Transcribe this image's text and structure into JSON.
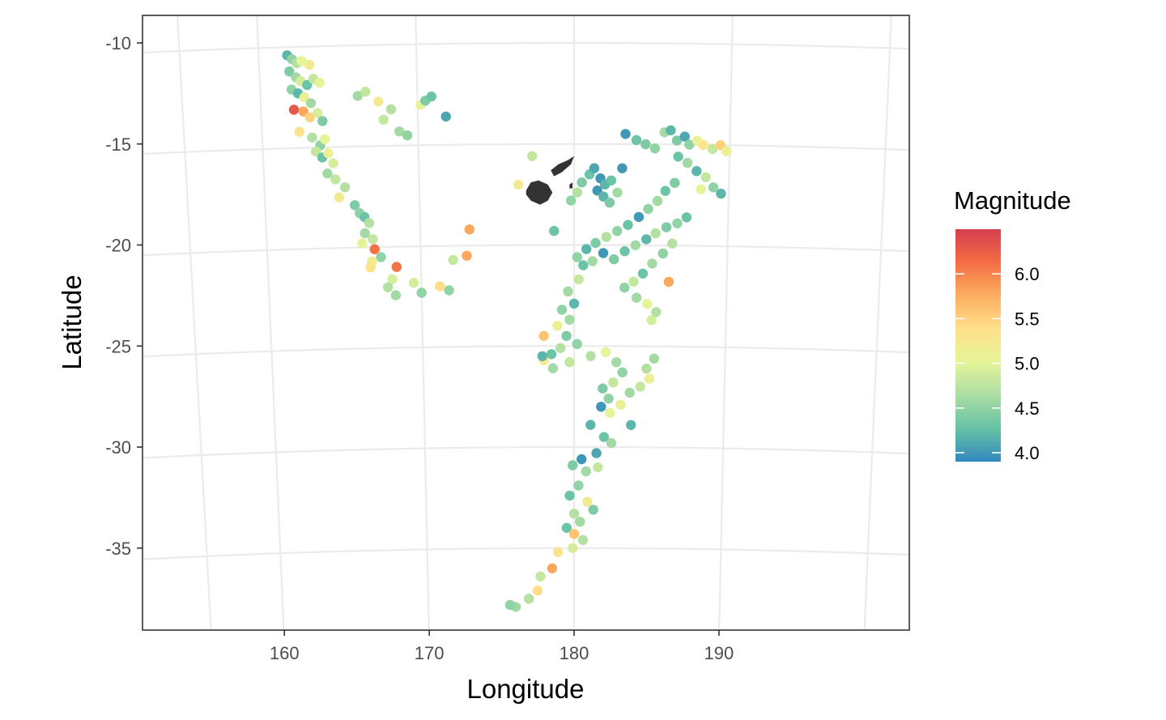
{
  "chart_data": {
    "type": "scatter",
    "title": "",
    "xlabel": "Longitude",
    "ylabel": "Latitude",
    "xlim": [
      152.5,
      201.5
    ],
    "ylim": [
      -39.5,
      -8.7
    ],
    "x_ticks": [
      160,
      170,
      180,
      190
    ],
    "x_tick_labels": [
      "160",
      "170",
      "180",
      "190"
    ],
    "y_ticks": [
      -10,
      -15,
      -20,
      -25,
      -30,
      -35
    ],
    "y_tick_labels": [
      "-10",
      "-15",
      "-20",
      "-25",
      "-30",
      "-35"
    ],
    "grid": true,
    "graticule_lon": [
      155,
      160,
      170,
      180,
      190,
      200
    ],
    "graticule_lat": [
      -10,
      -15,
      -20,
      -25,
      -30,
      -35
    ],
    "legend": {
      "title": "Magnitude",
      "placement": "right",
      "min": 3.9,
      "max": 6.5,
      "breaks": [
        4.0,
        4.5,
        5.0,
        5.5,
        6.0
      ],
      "break_labels": [
        "4.0",
        "4.5",
        "5.0",
        "5.5",
        "6.0"
      ],
      "palette": [
        "#3288bd",
        "#66c2a5",
        "#abdda4",
        "#e6f598",
        "#fee08b",
        "#fdae61",
        "#f46d43",
        "#d53e4f"
      ]
    },
    "land_color": "#333333",
    "series": [
      {
        "points": [
          [
            161.8,
            -10.4,
            4.2
          ],
          [
            162.1,
            -10.6,
            4.5
          ],
          [
            162.4,
            -10.8,
            4.7
          ],
          [
            162.7,
            -10.7,
            5.0
          ],
          [
            163.2,
            -10.9,
            5.2
          ],
          [
            161.9,
            -11.2,
            4.4
          ],
          [
            162.3,
            -11.5,
            4.6
          ],
          [
            162.6,
            -11.7,
            4.9
          ],
          [
            163.0,
            -11.9,
            4.3
          ],
          [
            163.4,
            -11.6,
            4.8
          ],
          [
            163.8,
            -11.8,
            5.0
          ],
          [
            162.0,
            -12.1,
            4.5
          ],
          [
            162.4,
            -12.3,
            4.2
          ],
          [
            162.8,
            -12.5,
            5.1
          ],
          [
            163.2,
            -12.8,
            4.6
          ],
          [
            162.1,
            -13.1,
            6.3
          ],
          [
            162.7,
            -13.2,
            5.8
          ],
          [
            163.1,
            -13.5,
            5.5
          ],
          [
            163.6,
            -13.3,
            4.9
          ],
          [
            163.9,
            -13.7,
            4.4
          ],
          [
            162.4,
            -14.2,
            5.3
          ],
          [
            163.2,
            -14.5,
            4.7
          ],
          [
            163.7,
            -14.9,
            4.5
          ],
          [
            164.0,
            -14.6,
            5.0
          ],
          [
            163.4,
            -15.2,
            4.8
          ],
          [
            163.8,
            -15.5,
            4.3
          ],
          [
            164.2,
            -15.3,
            5.1
          ],
          [
            164.5,
            -15.8,
            4.9
          ],
          [
            164.1,
            -16.3,
            4.6
          ],
          [
            164.6,
            -16.6,
            4.8
          ],
          [
            165.2,
            -17.0,
            4.7
          ],
          [
            164.8,
            -17.5,
            5.2
          ],
          [
            165.8,
            -17.9,
            4.4
          ],
          [
            166.1,
            -18.3,
            4.5
          ],
          [
            166.4,
            -18.5,
            4.3
          ],
          [
            166.7,
            -18.8,
            4.7
          ],
          [
            166.4,
            -19.3,
            4.6
          ],
          [
            166.9,
            -19.6,
            4.8
          ],
          [
            166.2,
            -19.8,
            5.0
          ],
          [
            167.0,
            -20.1,
            6.1
          ],
          [
            166.8,
            -20.7,
            5.2
          ],
          [
            167.4,
            -20.5,
            4.5
          ],
          [
            166.7,
            -21.0,
            5.3
          ],
          [
            168.4,
            -21.0,
            6.1
          ],
          [
            168.1,
            -21.6,
            4.9
          ],
          [
            167.8,
            -22.0,
            4.7
          ],
          [
            168.3,
            -22.4,
            4.6
          ],
          [
            169.5,
            -21.8,
            4.9
          ],
          [
            170.0,
            -22.3,
            4.5
          ],
          [
            171.2,
            -22.0,
            5.4
          ],
          [
            171.8,
            -22.2,
            4.5
          ],
          [
            172.1,
            -20.7,
            4.8
          ],
          [
            173.0,
            -20.5,
            5.8
          ],
          [
            173.2,
            -19.2,
            5.8
          ],
          [
            166.2,
            -12.5,
            4.6
          ],
          [
            166.7,
            -12.3,
            4.8
          ],
          [
            167.5,
            -12.8,
            5.2
          ],
          [
            168.3,
            -13.2,
            4.7
          ],
          [
            167.8,
            -13.7,
            4.8
          ],
          [
            168.8,
            -14.3,
            4.6
          ],
          [
            169.3,
            -14.5,
            4.5
          ],
          [
            170.2,
            -13.0,
            5.0
          ],
          [
            170.5,
            -12.8,
            4.4
          ],
          [
            170.9,
            -12.6,
            4.3
          ],
          [
            171.8,
            -13.6,
            4.1
          ],
          [
            177.3,
            -15.6,
            4.8
          ],
          [
            176.4,
            -17.0,
            5.2
          ],
          [
            178.7,
            -19.3,
            4.3
          ],
          [
            179.8,
            -17.8,
            4.5
          ],
          [
            180.2,
            -17.4,
            4.7
          ],
          [
            180.5,
            -16.9,
            4.4
          ],
          [
            181.0,
            -16.5,
            4.3
          ],
          [
            181.3,
            -16.2,
            4.1
          ],
          [
            181.7,
            -16.7,
            4.0
          ],
          [
            182.0,
            -17.0,
            4.2
          ],
          [
            182.4,
            -16.8,
            4.3
          ],
          [
            181.5,
            -17.3,
            4.0
          ],
          [
            181.9,
            -17.6,
            4.2
          ],
          [
            182.3,
            -17.9,
            4.4
          ],
          [
            182.8,
            -17.4,
            4.6
          ],
          [
            183.1,
            -16.2,
            4.0
          ],
          [
            183.3,
            -14.5,
            4.0
          ],
          [
            184.0,
            -14.8,
            4.3
          ],
          [
            184.6,
            -15.0,
            4.4
          ],
          [
            185.2,
            -15.2,
            4.5
          ],
          [
            185.8,
            -14.4,
            4.6
          ],
          [
            186.2,
            -14.3,
            4.2
          ],
          [
            186.6,
            -14.8,
            4.4
          ],
          [
            187.1,
            -14.6,
            4.1
          ],
          [
            187.4,
            -15.0,
            4.5
          ],
          [
            187.9,
            -14.8,
            5.1
          ],
          [
            188.3,
            -15.0,
            5.3
          ],
          [
            188.9,
            -15.2,
            4.8
          ],
          [
            189.4,
            -15.0,
            5.5
          ],
          [
            189.8,
            -15.3,
            5.1
          ],
          [
            186.7,
            -15.6,
            4.3
          ],
          [
            187.3,
            -15.9,
            4.6
          ],
          [
            187.9,
            -16.3,
            4.2
          ],
          [
            188.5,
            -16.6,
            4.8
          ],
          [
            189.0,
            -17.1,
            4.5
          ],
          [
            189.5,
            -17.4,
            4.2
          ],
          [
            188.2,
            -17.2,
            5.0
          ],
          [
            186.5,
            -16.9,
            4.4
          ],
          [
            185.9,
            -17.3,
            4.3
          ],
          [
            185.4,
            -17.8,
            4.6
          ],
          [
            184.8,
            -18.2,
            4.5
          ],
          [
            184.2,
            -18.6,
            4.0
          ],
          [
            183.5,
            -19.0,
            4.3
          ],
          [
            182.8,
            -19.3,
            4.5
          ],
          [
            182.1,
            -19.6,
            4.7
          ],
          [
            181.4,
            -19.9,
            4.4
          ],
          [
            180.8,
            -20.2,
            4.2
          ],
          [
            180.2,
            -20.6,
            4.5
          ],
          [
            180.6,
            -21.0,
            4.3
          ],
          [
            181.2,
            -20.8,
            4.6
          ],
          [
            181.9,
            -20.4,
            4.0
          ],
          [
            182.6,
            -20.7,
            4.4
          ],
          [
            183.3,
            -20.3,
            4.3
          ],
          [
            184.0,
            -20.0,
            4.6
          ],
          [
            184.7,
            -19.7,
            4.2
          ],
          [
            185.3,
            -19.4,
            4.7
          ],
          [
            186.0,
            -19.1,
            4.4
          ],
          [
            186.7,
            -18.9,
            4.5
          ],
          [
            187.3,
            -18.6,
            4.3
          ],
          [
            186.4,
            -19.9,
            4.7
          ],
          [
            185.8,
            -20.4,
            4.5
          ],
          [
            185.1,
            -20.9,
            4.6
          ],
          [
            184.5,
            -21.4,
            4.3
          ],
          [
            183.9,
            -21.8,
            4.8
          ],
          [
            183.3,
            -22.1,
            4.5
          ],
          [
            184.1,
            -22.6,
            4.6
          ],
          [
            184.8,
            -22.9,
            5.0
          ],
          [
            185.4,
            -23.3,
            4.7
          ],
          [
            185.1,
            -23.7,
            4.9
          ],
          [
            186.2,
            -21.8,
            5.8
          ],
          [
            180.3,
            -21.7,
            4.8
          ],
          [
            179.6,
            -22.3,
            4.6
          ],
          [
            180.0,
            -22.9,
            4.2
          ],
          [
            179.2,
            -23.2,
            4.5
          ],
          [
            179.7,
            -23.7,
            4.6
          ],
          [
            178.9,
            -24.0,
            5.1
          ],
          [
            179.5,
            -24.5,
            4.4
          ],
          [
            180.2,
            -24.9,
            4.5
          ],
          [
            179.1,
            -25.1,
            4.7
          ],
          [
            178.5,
            -25.4,
            4.3
          ],
          [
            178.0,
            -25.7,
            5.2
          ],
          [
            178.6,
            -26.1,
            4.6
          ],
          [
            179.7,
            -25.8,
            4.8
          ],
          [
            178.0,
            -24.5,
            5.6
          ],
          [
            177.9,
            -25.5,
            4.2
          ],
          [
            181.1,
            -25.5,
            4.7
          ],
          [
            182.1,
            -25.3,
            5.0
          ],
          [
            182.8,
            -25.8,
            4.6
          ],
          [
            183.2,
            -26.3,
            4.5
          ],
          [
            182.6,
            -26.8,
            4.8
          ],
          [
            181.9,
            -27.1,
            4.4
          ],
          [
            182.3,
            -27.6,
            4.5
          ],
          [
            183.1,
            -27.9,
            5.1
          ],
          [
            183.7,
            -27.3,
            4.6
          ],
          [
            184.4,
            -27.0,
            4.8
          ],
          [
            185.0,
            -26.6,
            5.1
          ],
          [
            184.8,
            -26.1,
            4.7
          ],
          [
            185.3,
            -25.6,
            4.6
          ],
          [
            181.8,
            -28.0,
            4.0
          ],
          [
            183.8,
            -28.9,
            4.2
          ],
          [
            182.4,
            -28.3,
            5.0
          ],
          [
            181.1,
            -28.9,
            4.2
          ],
          [
            182.0,
            -29.5,
            4.3
          ],
          [
            182.5,
            -29.8,
            4.6
          ],
          [
            181.5,
            -30.3,
            4.1
          ],
          [
            180.5,
            -30.6,
            4.0
          ],
          [
            179.9,
            -30.9,
            4.4
          ],
          [
            180.8,
            -31.2,
            4.6
          ],
          [
            181.6,
            -31.0,
            4.8
          ],
          [
            180.3,
            -31.9,
            4.5
          ],
          [
            179.7,
            -32.4,
            4.3
          ],
          [
            180.9,
            -32.7,
            5.2
          ],
          [
            181.3,
            -33.1,
            4.4
          ],
          [
            180.0,
            -33.3,
            4.7
          ],
          [
            180.4,
            -33.7,
            4.6
          ],
          [
            179.5,
            -34.0,
            4.3
          ],
          [
            180.0,
            -34.3,
            5.6
          ],
          [
            180.6,
            -34.6,
            4.7
          ],
          [
            179.9,
            -35.0,
            4.9
          ],
          [
            178.9,
            -35.2,
            5.3
          ],
          [
            178.5,
            -36.0,
            5.8
          ],
          [
            177.7,
            -36.4,
            4.8
          ],
          [
            177.5,
            -37.1,
            5.4
          ],
          [
            176.9,
            -37.5,
            4.7
          ],
          [
            176.0,
            -37.9,
            4.6
          ],
          [
            175.6,
            -37.8,
            4.5
          ]
        ]
      }
    ]
  }
}
